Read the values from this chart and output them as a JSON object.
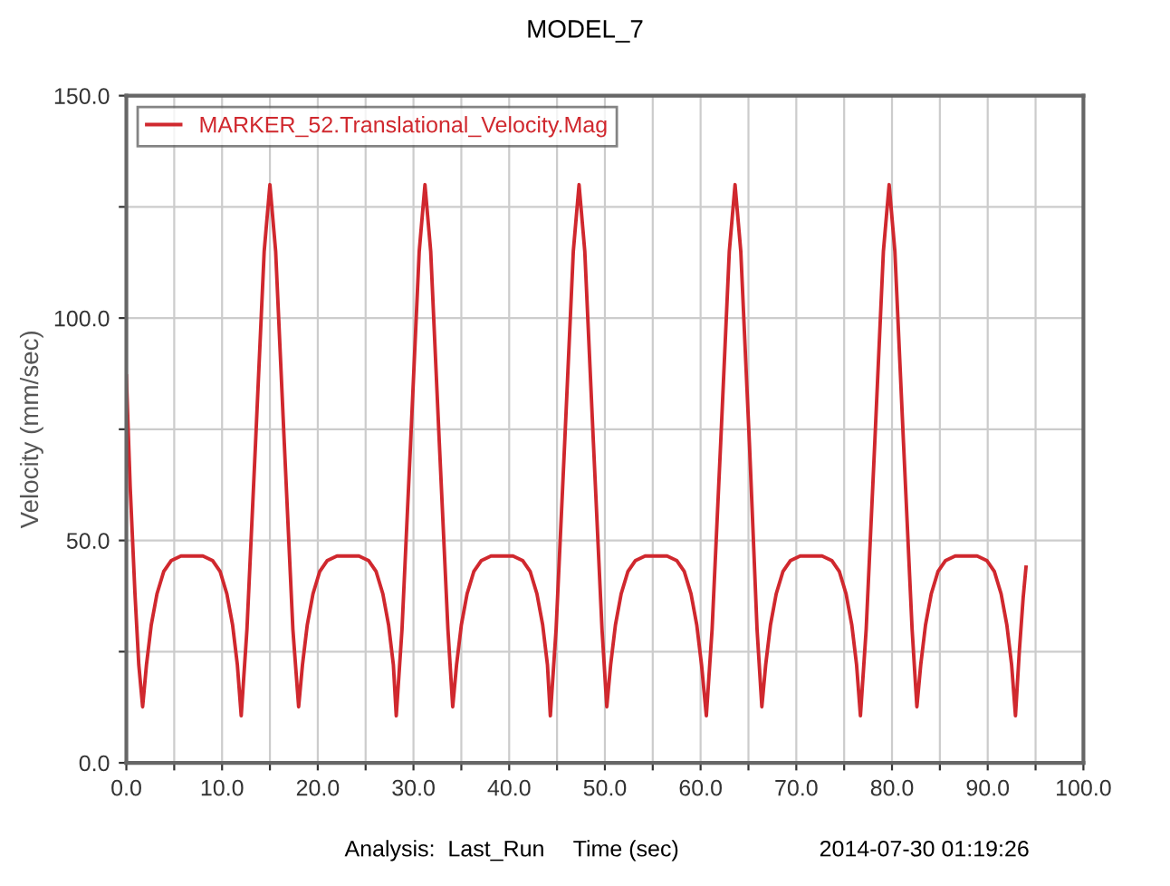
{
  "chart_data": {
    "type": "line",
    "title": "MODEL_7",
    "xlabel": "Time (sec)",
    "ylabel": "Velocity (mm/sec)",
    "annotations": [
      "Analysis:  Last_Run",
      "2014-07-30 01:19:26"
    ],
    "series": [
      {
        "name": "MARKER_52.Translational_Velocity.Mag",
        "color": "#d0282e",
        "x": [
          0,
          0.4,
          0.9,
          1.3,
          1.7,
          2.1,
          2.6,
          3.2,
          3.9,
          4.7,
          5.7,
          6.85,
          8.0,
          9.0,
          9.8,
          10.5,
          11.1,
          11.6,
          12.0,
          12.6,
          13.5,
          14.4,
          15.0,
          15.6,
          16.5,
          17.4,
          18.0,
          18.4,
          18.9,
          19.5,
          20.2,
          21.0,
          22.0,
          23.15,
          24.3,
          25.3,
          26.1,
          26.8,
          27.4,
          27.9,
          28.2,
          28.8,
          29.7,
          30.6,
          31.2,
          31.8,
          32.7,
          33.6,
          34.1,
          34.5,
          35.0,
          35.6,
          36.3,
          37.1,
          38.1,
          39.25,
          40.4,
          41.4,
          42.2,
          42.9,
          43.5,
          44.0,
          44.3,
          44.9,
          45.8,
          46.7,
          47.3,
          47.9,
          48.8,
          49.7,
          50.2,
          50.6,
          51.1,
          51.7,
          52.4,
          53.2,
          54.2,
          55.35,
          56.5,
          57.5,
          58.3,
          59.0,
          59.6,
          60.1,
          60.6,
          61.2,
          62.1,
          63.0,
          63.6,
          64.2,
          65.1,
          65.9,
          66.4,
          66.8,
          67.3,
          67.9,
          68.6,
          69.4,
          70.4,
          71.55,
          72.7,
          73.7,
          74.5,
          75.2,
          75.8,
          76.3,
          76.7,
          77.3,
          78.2,
          79.1,
          79.7,
          80.3,
          81.2,
          82.1,
          82.6,
          83.0,
          83.5,
          84.1,
          84.8,
          85.6,
          86.6,
          87.75,
          88.9,
          89.9,
          90.7,
          91.4,
          92.0,
          92.5,
          92.9,
          93.3,
          93.7,
          94.0
        ],
        "values": [
          87,
          62,
          38,
          22,
          12.6,
          22,
          31,
          38,
          43,
          45.5,
          46.5,
          46.5,
          46.5,
          45.5,
          43,
          38,
          31,
          22,
          10.6,
          30,
          72,
          115,
          130,
          115,
          72,
          30,
          12.6,
          22,
          31,
          38,
          43,
          45.5,
          46.5,
          46.5,
          46.5,
          45.5,
          43,
          38,
          31,
          22,
          10.6,
          30,
          72,
          115,
          130,
          115,
          72,
          30,
          12.6,
          22,
          31,
          38,
          43,
          45.5,
          46.5,
          46.5,
          46.5,
          45.5,
          43,
          38,
          31,
          22,
          10.6,
          30,
          72,
          115,
          130,
          115,
          72,
          30,
          12.6,
          22,
          31,
          38,
          43,
          45.5,
          46.5,
          46.5,
          46.5,
          45.5,
          43,
          38,
          31,
          22,
          10.6,
          30,
          72,
          115,
          130,
          115,
          72,
          30,
          12.6,
          22,
          31,
          38,
          43,
          45.5,
          46.5,
          46.5,
          46.5,
          45.5,
          43,
          38,
          31,
          22,
          10.6,
          30,
          72,
          115,
          130,
          115,
          72,
          30,
          12.6,
          22,
          31,
          38,
          43,
          45.5,
          46.5,
          46.5,
          46.5,
          45.5,
          43,
          38,
          31,
          22,
          10.6,
          25,
          37,
          44
        ]
      }
    ],
    "xlim": [
      0,
      100
    ],
    "ylim": [
      0,
      150
    ],
    "xticks": [
      {
        "value": 0,
        "label": "0.0"
      },
      {
        "value": 5,
        "label": null
      },
      {
        "value": 10,
        "label": "10.0"
      },
      {
        "value": 15,
        "label": null
      },
      {
        "value": 20,
        "label": "20.0"
      },
      {
        "value": 25,
        "label": null
      },
      {
        "value": 30,
        "label": "30.0"
      },
      {
        "value": 35,
        "label": null
      },
      {
        "value": 40,
        "label": "40.0"
      },
      {
        "value": 45,
        "label": null
      },
      {
        "value": 50,
        "label": "50.0"
      },
      {
        "value": 55,
        "label": null
      },
      {
        "value": 60,
        "label": "60.0"
      },
      {
        "value": 65,
        "label": null
      },
      {
        "value": 70,
        "label": "70.0"
      },
      {
        "value": 75,
        "label": null
      },
      {
        "value": 80,
        "label": "80.0"
      },
      {
        "value": 85,
        "label": null
      },
      {
        "value": 90,
        "label": "90.0"
      },
      {
        "value": 95,
        "label": null
      },
      {
        "value": 100,
        "label": "100.0"
      }
    ],
    "yticks": [
      {
        "value": 0,
        "label": "0.0"
      },
      {
        "value": 25,
        "label": null
      },
      {
        "value": 50,
        "label": "50.0"
      },
      {
        "value": 75,
        "label": null
      },
      {
        "value": 100,
        "label": "100.0"
      },
      {
        "value": 125,
        "label": null
      },
      {
        "value": 150,
        "label": "150.0"
      }
    ],
    "grid": true,
    "legend": "top left",
    "marker": "none",
    "line_style": "solid"
  }
}
